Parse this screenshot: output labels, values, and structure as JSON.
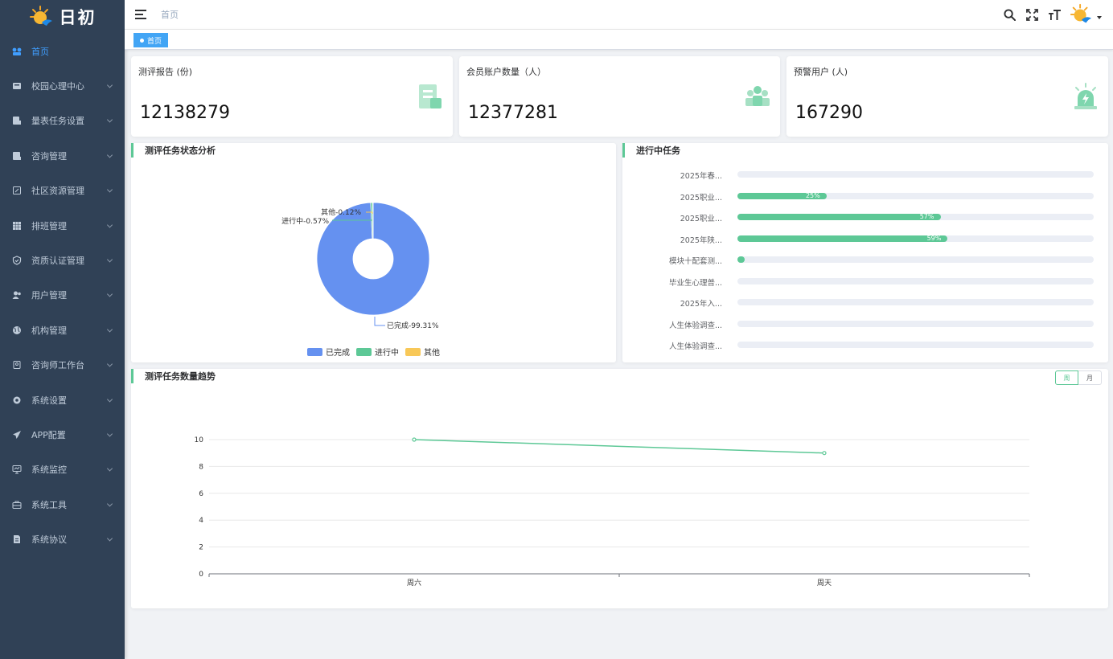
{
  "app": {
    "logo_text": "日初"
  },
  "colors": {
    "sidebar": "#304156",
    "accent": "#409eff",
    "green": "#5dc896",
    "blue": "#6591f0",
    "yellow": "#f8c858"
  },
  "sidebar": {
    "items": [
      {
        "label": "首页",
        "icon": "dashboard-icon",
        "active": true,
        "has_children": false
      },
      {
        "label": "校园心理中心",
        "icon": "campus-icon",
        "has_children": true
      },
      {
        "label": "量表任务设置",
        "icon": "form-icon",
        "has_children": true
      },
      {
        "label": "咨询管理",
        "icon": "consult-icon",
        "has_children": true
      },
      {
        "label": "社区资源管理",
        "icon": "edit-icon",
        "has_children": true
      },
      {
        "label": "排班管理",
        "icon": "table-icon",
        "has_children": true
      },
      {
        "label": "资质认证管理",
        "icon": "shield-icon",
        "has_children": true
      },
      {
        "label": "用户管理",
        "icon": "user-icon",
        "has_children": true
      },
      {
        "label": "机构管理",
        "icon": "globe-icon",
        "has_children": true
      },
      {
        "label": "咨询师工作台",
        "icon": "workbench-icon",
        "has_children": true
      },
      {
        "label": "系统设置",
        "icon": "gear-icon",
        "has_children": true
      },
      {
        "label": "APP配置",
        "icon": "send-icon",
        "has_children": true
      },
      {
        "label": "系统监控",
        "icon": "monitor-icon",
        "has_children": true
      },
      {
        "label": "系统工具",
        "icon": "tool-icon",
        "has_children": true
      },
      {
        "label": "系统协议",
        "icon": "document-icon",
        "has_children": true
      }
    ]
  },
  "header": {
    "breadcrumb": "首页"
  },
  "tags": [
    {
      "label": "首页",
      "active": true
    }
  ],
  "stats": [
    {
      "title": "测评报告 (份)",
      "value": "12138279",
      "icon": "report-icon"
    },
    {
      "title": "会员账户数量（人）",
      "value": "12377281",
      "icon": "members-icon"
    },
    {
      "title": "预警用户 (人)",
      "value": "167290",
      "icon": "alarm-icon"
    }
  ],
  "pie_panel": {
    "title": "测评任务状态分析",
    "labels": {
      "done": "已完成-99.31%",
      "progress": "进行中-0.57%",
      "other": "其他-0.12%"
    }
  },
  "tasks_panel": {
    "title": "进行中任务"
  },
  "trend_panel": {
    "title": "测评任务数量趋势",
    "toggle": [
      "周",
      "月"
    ],
    "active_toggle": 0
  },
  "chart_data": [
    {
      "type": "pie",
      "title": "测评任务状态分析",
      "donut": true,
      "slices": [
        {
          "name": "已完成",
          "value": 99.31,
          "color": "#6591f0"
        },
        {
          "name": "进行中",
          "value": 0.57,
          "color": "#5dc896"
        },
        {
          "name": "其他",
          "value": 0.12,
          "color": "#f8c858"
        }
      ],
      "legend_position": "bottom"
    },
    {
      "type": "bar",
      "title": "进行中任务",
      "orientation": "horizontal",
      "categories": [
        "2025年春...",
        "2025职业...",
        "2025职业...",
        "2025年陕...",
        "模块十配套测...",
        "毕业生心理普...",
        "2025年入...",
        "人生体验调查...",
        "人生体验调查..."
      ],
      "values": [
        0,
        25,
        57,
        59,
        2,
        0,
        0,
        0,
        0
      ],
      "value_labels": [
        "",
        "25%",
        "57%",
        "59%",
        "",
        "",
        "",
        "",
        ""
      ],
      "xlim": [
        0,
        100
      ]
    },
    {
      "type": "line",
      "title": "测评任务数量趋势",
      "categories": [
        "周六",
        "周天"
      ],
      "series": [
        {
          "values": [
            10,
            9
          ],
          "color": "#5dc896"
        }
      ],
      "yticks": [
        "0",
        "2",
        "4",
        "6",
        "8",
        "10"
      ],
      "ylim": [
        0,
        10
      ],
      "grid": true
    }
  ]
}
